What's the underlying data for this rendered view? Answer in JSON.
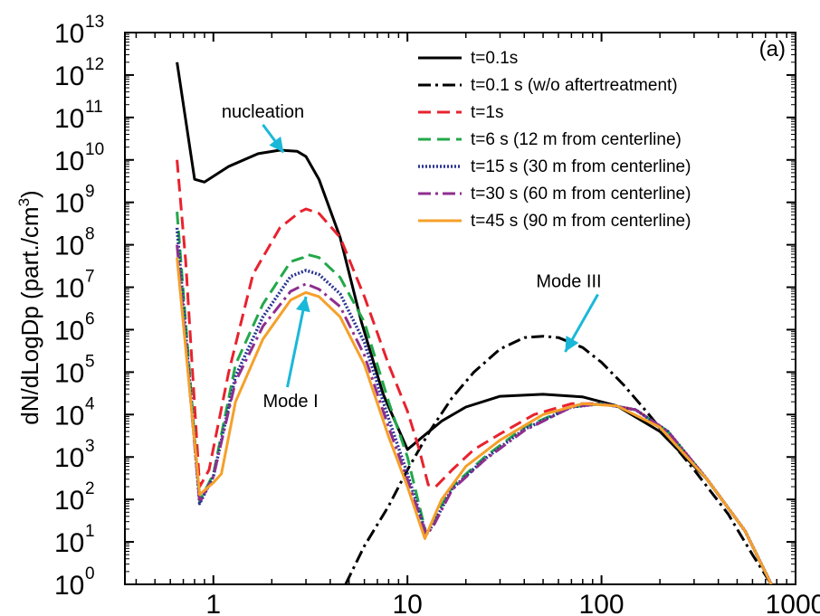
{
  "chart_data": {
    "type": "line",
    "panel_label": "(a)",
    "xlabel": "",
    "ylabel": "dN/dLogDp (part./cm",
    "ylabel_sup": "3",
    "ylabel_close": ")",
    "x_scale": "log",
    "y_scale": "log",
    "xlim": [
      0.35,
      1000
    ],
    "ylim_exponent": [
      0,
      13
    ],
    "x_ticks": [
      {
        "value": 1,
        "label": "1"
      },
      {
        "value": 10,
        "label": "10"
      },
      {
        "value": 100,
        "label": "100"
      },
      {
        "value": 1000,
        "label": "1000"
      }
    ],
    "y_ticks": [
      {
        "exp": 0,
        "base": "10",
        "sup": "0"
      },
      {
        "exp": 1,
        "base": "10",
        "sup": "1"
      },
      {
        "exp": 2,
        "base": "10",
        "sup": "2"
      },
      {
        "exp": 3,
        "base": "10",
        "sup": "3"
      },
      {
        "exp": 4,
        "base": "10",
        "sup": "4"
      },
      {
        "exp": 5,
        "base": "10",
        "sup": "5"
      },
      {
        "exp": 6,
        "base": "10",
        "sup": "6"
      },
      {
        "exp": 7,
        "base": "10",
        "sup": "7"
      },
      {
        "exp": 8,
        "base": "10",
        "sup": "8"
      },
      {
        "exp": 9,
        "base": "10",
        "sup": "9"
      },
      {
        "exp": 10,
        "base": "10",
        "sup": "10"
      },
      {
        "exp": 11,
        "base": "10",
        "sup": "11"
      },
      {
        "exp": 12,
        "base": "10",
        "sup": "12"
      },
      {
        "exp": 13,
        "base": "10",
        "sup": "13"
      }
    ],
    "grid": false,
    "legend_position": "top-right",
    "series": [
      {
        "name": "t=0.1s",
        "color": "#000000",
        "dash": "solid",
        "x": [
          0.65,
          0.8,
          0.9,
          1.2,
          1.7,
          2.2,
          2.7,
          3.0,
          3.5,
          4.5,
          5.8,
          7.5,
          10.0,
          12.0,
          15.0,
          20.0,
          30.0,
          50.0,
          80.0,
          120.0,
          200.0,
          350.0,
          550.0,
          750.0
        ],
        "y": [
          2000000000000.0,
          3500000000.0,
          3000000000.0,
          7000000000.0,
          14000000000.0,
          17000000000.0,
          16000000000.0,
          12000000000.0,
          3500000000.0,
          150000000.0,
          1500000.0,
          30000.0,
          1500.0,
          3000.0,
          7000.0,
          15000.0,
          27000.0,
          30000.0,
          26000.0,
          16000.0,
          4000.0,
          300,
          18,
          1
        ]
      },
      {
        "name": "t=0.1 s (w/o aftertreatment)",
        "color": "#000000",
        "dash": "dashdot",
        "x": [
          4.8,
          6.0,
          8.0,
          10.0,
          13.0,
          17.0,
          22.0,
          30.0,
          40.0,
          50.0,
          60.0,
          80.0,
          100.0,
          130.0,
          170.0,
          220.0,
          300.0,
          450.0,
          600.0,
          750.0
        ],
        "y": [
          1,
          8,
          70,
          500,
          4000.0,
          25000.0,
          100000.0,
          350000.0,
          650000.0,
          700000.0,
          650000.0,
          380000.0,
          170000.0,
          50000.0,
          12000.0,
          2800.0,
          500,
          45,
          5,
          1
        ]
      },
      {
        "name": "t=1s",
        "color": "#e8222e",
        "dash": "dashed",
        "x": [
          0.65,
          0.72,
          0.85,
          0.95,
          1.2,
          1.6,
          2.2,
          2.8,
          3.0,
          3.5,
          4.5,
          6.0,
          8.0,
          10.0,
          11.5,
          12.8,
          14.0,
          17.0,
          22.0,
          30.0,
          45.0,
          70.0,
          100.0,
          150.0,
          220.0,
          350.0,
          550.0,
          750.0
        ],
        "y": [
          10000000000.0,
          40000000.0,
          200,
          500,
          100000.0,
          20000000.0,
          250000000.0,
          600000000.0,
          700000000.0,
          550000000.0,
          150000000.0,
          6000000.0,
          150000.0,
          12000.0,
          1500.0,
          220,
          200,
          500,
          1500.0,
          3500.0,
          10000.0,
          18000.0,
          18000.0,
          13000.0,
          4000.0,
          300,
          18,
          1
        ]
      },
      {
        "name": "t=6 s (12 m from centerline)",
        "color": "#22a84a",
        "dash": "dashed",
        "x": [
          0.65,
          0.85,
          1.0,
          1.3,
          1.8,
          2.5,
          2.9,
          3.0,
          3.5,
          4.5,
          6.0,
          8.0,
          10.0,
          12.5,
          13.5,
          17.0,
          25.0,
          40.0,
          70.0,
          100.0,
          150.0,
          220.0,
          350.0,
          550.0,
          750.0
        ],
        "y": [
          600000000.0,
          90,
          400,
          150000.0,
          4000000.0,
          40000000.0,
          50000000.0,
          60000000.0,
          50000000.0,
          17000000.0,
          1500000.0,
          20000.0,
          1000.0,
          15,
          30,
          200,
          1000.0,
          5000.0,
          15000.0,
          18000.0,
          13000.0,
          4000.0,
          300,
          18,
          1
        ]
      },
      {
        "name": "t=15 s (30 m from centerline)",
        "color": "#2a3592",
        "dash": "dotted",
        "x": [
          0.65,
          0.85,
          1.0,
          1.3,
          1.8,
          2.5,
          3.0,
          3.5,
          4.5,
          6.0,
          8.0,
          10.0,
          12.5,
          13.5,
          17.0,
          25.0,
          40.0,
          70.0,
          100.0,
          150.0,
          220.0,
          350.0,
          550.0,
          750.0
        ],
        "y": [
          250000000.0,
          80,
          350,
          80000.0,
          2000000.0,
          18000000.0,
          25000000.0,
          20000000.0,
          7000000.0,
          500000.0,
          8000.0,
          400,
          15,
          25,
          180,
          900,
          4500.0,
          15000.0,
          18000.0,
          13000.0,
          4000.0,
          300,
          18,
          1
        ]
      },
      {
        "name": "t=30 s (60 m from centerline)",
        "color": "#8e2e8e",
        "dash": "dashdot",
        "x": [
          0.65,
          0.85,
          1.0,
          1.3,
          1.8,
          2.5,
          3.0,
          3.5,
          4.5,
          6.0,
          8.0,
          10.0,
          12.5,
          13.5,
          17.0,
          25.0,
          40.0,
          70.0,
          100.0,
          150.0,
          220.0,
          350.0,
          550.0,
          750.0
        ],
        "y": [
          100000000.0,
          85,
          350,
          60000.0,
          1200000.0,
          8000000.0,
          12000000.0,
          9000000.0,
          3500000.0,
          250000.0,
          5000.0,
          300,
          15,
          22,
          170,
          850,
          4200.0,
          15000.0,
          18000.0,
          13000.0,
          4000.0,
          300,
          18,
          1
        ]
      },
      {
        "name": "t=45 s (90 m from centerline)",
        "color": "#f5a02a",
        "dash": "solid",
        "x": [
          0.65,
          0.85,
          1.0,
          1.1,
          1.3,
          1.8,
          2.5,
          2.9,
          3.0,
          3.5,
          4.5,
          6.0,
          8.0,
          10.0,
          12.3,
          13.0,
          15.0,
          20.0,
          30.0,
          50.0,
          80.0,
          120.0,
          200.0,
          350.0,
          550.0,
          750.0
        ],
        "y": [
          50000000.0,
          130,
          250,
          400,
          20000.0,
          600000.0,
          5000000.0,
          7000000.0,
          7500000.0,
          6000000.0,
          2000000.0,
          150000.0,
          3000.0,
          200,
          12,
          22,
          100,
          600,
          2500.0,
          10000.0,
          18000.0,
          16000.0,
          5000.0,
          300,
          18,
          1
        ]
      }
    ],
    "annotations": [
      {
        "text": "nucleation",
        "x": 1.8,
        "y": 100000000000.0,
        "arrow_to": [
          2.3,
          15000000000.0
        ],
        "color": "#1ab8d8"
      },
      {
        "text": "Mode III",
        "x": 100,
        "y": 10000000.0,
        "arrow_to": [
          65,
          300000.0
        ],
        "color": "#1ab8d8"
      },
      {
        "text": "Mode I",
        "x": 1.8,
        "y": 15000.0,
        "arrow_to": [
          3.0,
          6000000.0
        ],
        "color": "#1ab8d8"
      }
    ]
  }
}
